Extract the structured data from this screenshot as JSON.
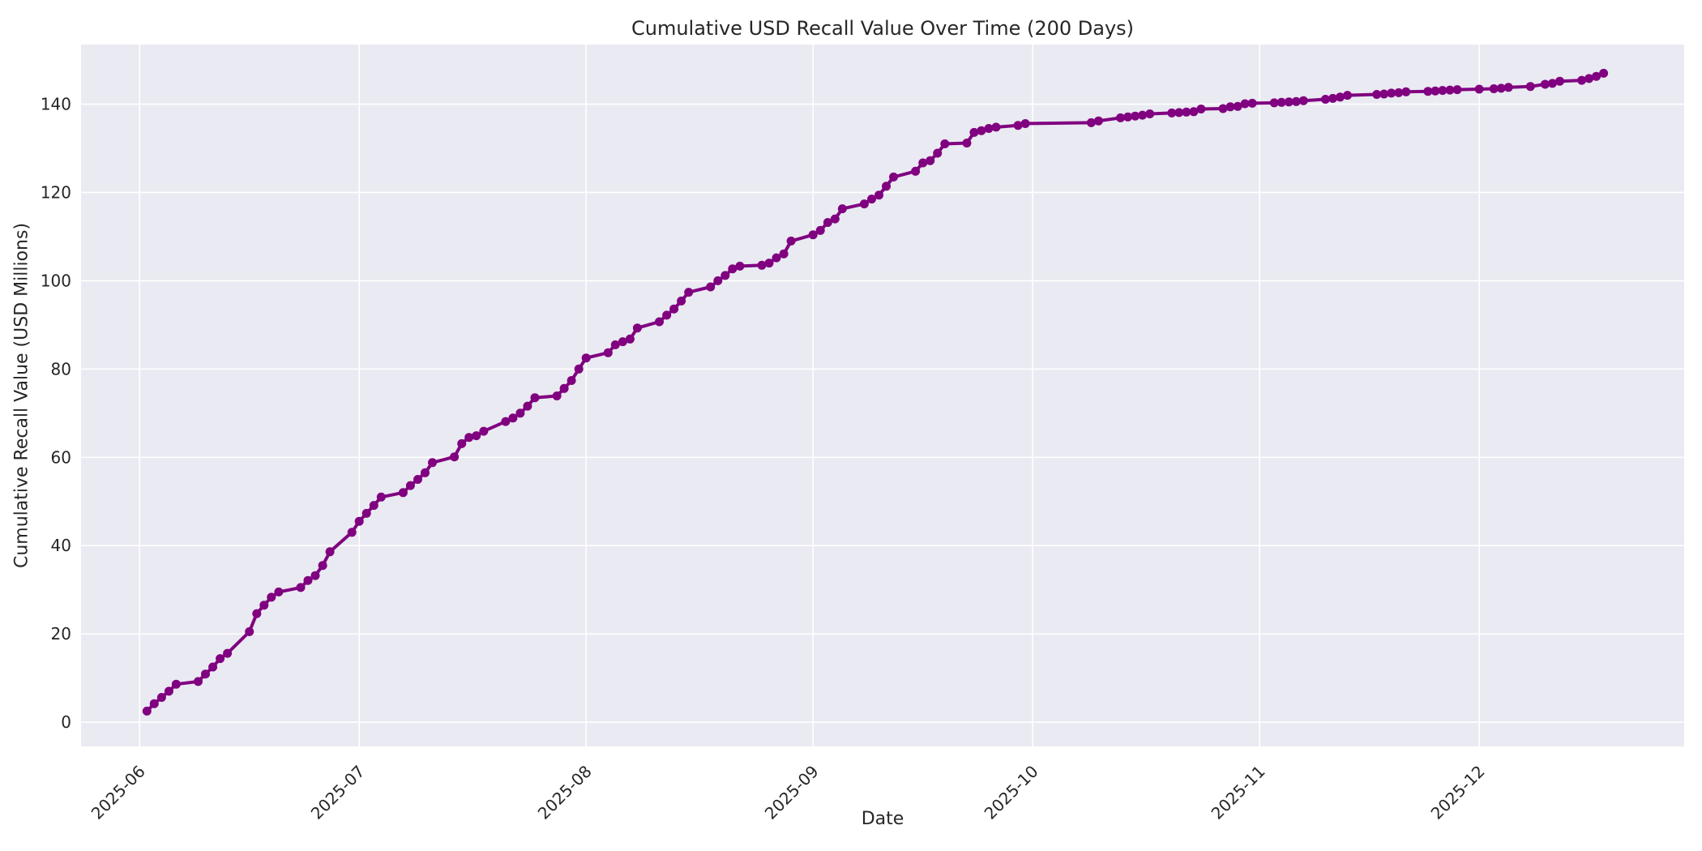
{
  "figure": {
    "title": "Cumulative USD Recall Value Over Time (200 Days)",
    "xlabel": "Date",
    "ylabel": "Cumulative Recall Value (USD Millions)"
  },
  "chart_data": {
    "type": "line",
    "title": "Cumulative USD Recall Value Over Time (200 Days)",
    "xlabel": "Date",
    "ylabel": "Cumulative Recall Value (USD Millions)",
    "grid": true,
    "legend": "none",
    "line_color": "#800080",
    "plot_bg": "#eaeaf2",
    "grid_color": "#ffffff",
    "text_color": "#262626",
    "marker": "circle",
    "marker_radius": 5.5,
    "line_width": 4,
    "x_start_date": "2025-06-02",
    "xlim_days": [
      -9,
      210
    ],
    "ylim": [
      -5.5,
      153.5
    ],
    "yticks": [
      0,
      20,
      40,
      60,
      80,
      100,
      120,
      140
    ],
    "xticks": [
      {
        "label": "2025-06",
        "date": "2025-06-01"
      },
      {
        "label": "2025-07",
        "date": "2025-07-01"
      },
      {
        "label": "2025-08",
        "date": "2025-08-01"
      },
      {
        "label": "2025-09",
        "date": "2025-09-01"
      },
      {
        "label": "2025-10",
        "date": "2025-10-01"
      },
      {
        "label": "2025-11",
        "date": "2025-11-01"
      },
      {
        "label": "2025-12",
        "date": "2025-12-01"
      }
    ],
    "series": [
      {
        "name": "Cumulative USD Recall Value",
        "x": [
          "2025-06-02",
          "2025-06-03",
          "2025-06-04",
          "2025-06-05",
          "2025-06-06",
          "2025-06-09",
          "2025-06-10",
          "2025-06-11",
          "2025-06-12",
          "2025-06-13",
          "2025-06-16",
          "2025-06-17",
          "2025-06-18",
          "2025-06-19",
          "2025-06-20",
          "2025-06-23",
          "2025-06-24",
          "2025-06-25",
          "2025-06-26",
          "2025-06-27",
          "2025-06-30",
          "2025-07-01",
          "2025-07-02",
          "2025-07-03",
          "2025-07-04",
          "2025-07-07",
          "2025-07-08",
          "2025-07-09",
          "2025-07-10",
          "2025-07-11",
          "2025-07-14",
          "2025-07-15",
          "2025-07-16",
          "2025-07-17",
          "2025-07-18",
          "2025-07-21",
          "2025-07-22",
          "2025-07-23",
          "2025-07-24",
          "2025-07-25",
          "2025-07-28",
          "2025-07-29",
          "2025-07-30",
          "2025-07-31",
          "2025-08-01",
          "2025-08-04",
          "2025-08-05",
          "2025-08-06",
          "2025-08-07",
          "2025-08-08",
          "2025-08-11",
          "2025-08-12",
          "2025-08-13",
          "2025-08-14",
          "2025-08-15",
          "2025-08-18",
          "2025-08-19",
          "2025-08-20",
          "2025-08-21",
          "2025-08-22",
          "2025-08-25",
          "2025-08-26",
          "2025-08-27",
          "2025-08-28",
          "2025-08-29",
          "2025-09-01",
          "2025-09-02",
          "2025-09-03",
          "2025-09-04",
          "2025-09-05",
          "2025-09-08",
          "2025-09-09",
          "2025-09-10",
          "2025-09-11",
          "2025-09-12",
          "2025-09-15",
          "2025-09-16",
          "2025-09-17",
          "2025-09-18",
          "2025-09-19",
          "2025-09-22",
          "2025-09-23",
          "2025-09-24",
          "2025-09-25",
          "2025-09-26",
          "2025-09-29",
          "2025-09-30",
          "2025-10-09",
          "2025-10-10",
          "2025-10-13",
          "2025-10-14",
          "2025-10-15",
          "2025-10-16",
          "2025-10-17",
          "2025-10-20",
          "2025-10-21",
          "2025-10-22",
          "2025-10-23",
          "2025-10-24",
          "2025-10-27",
          "2025-10-28",
          "2025-10-29",
          "2025-10-30",
          "2025-10-31",
          "2025-11-03",
          "2025-11-04",
          "2025-11-05",
          "2025-11-06",
          "2025-11-07",
          "2025-11-10",
          "2025-11-11",
          "2025-11-12",
          "2025-11-13",
          "2025-11-17",
          "2025-11-18",
          "2025-11-19",
          "2025-11-20",
          "2025-11-21",
          "2025-11-24",
          "2025-11-25",
          "2025-11-26",
          "2025-11-27",
          "2025-11-28",
          "2025-12-01",
          "2025-12-03",
          "2025-12-04",
          "2025-12-05",
          "2025-12-08",
          "2025-12-10",
          "2025-12-11",
          "2025-12-12",
          "2025-12-15",
          "2025-12-16",
          "2025-12-17",
          "2025-12-18"
        ],
        "values": [
          2.5,
          4.2,
          5.6,
          7.0,
          8.6,
          9.2,
          10.9,
          12.5,
          14.4,
          15.6,
          20.5,
          24.6,
          26.5,
          28.3,
          29.5,
          30.5,
          32.1,
          33.2,
          35.5,
          38.6,
          43.0,
          45.5,
          47.3,
          49.1,
          51.0,
          52.0,
          53.6,
          55.0,
          56.5,
          58.8,
          60.1,
          63.1,
          64.5,
          64.9,
          65.9,
          68.1,
          68.9,
          70.0,
          71.6,
          73.5,
          73.9,
          75.6,
          77.4,
          80.0,
          82.5,
          83.7,
          85.5,
          86.2,
          86.8,
          89.3,
          90.7,
          92.2,
          93.6,
          95.4,
          97.4,
          98.6,
          100.0,
          101.2,
          102.7,
          103.3,
          103.5,
          104.0,
          105.2,
          106.1,
          109.0,
          110.4,
          111.4,
          113.2,
          114.0,
          116.3,
          117.4,
          118.5,
          119.4,
          121.4,
          123.5,
          124.8,
          126.7,
          127.2,
          128.9,
          131.0,
          131.2,
          133.6,
          134.0,
          134.5,
          134.8,
          135.2,
          135.6,
          135.8,
          136.2,
          136.9,
          137.1,
          137.3,
          137.5,
          137.8,
          138.0,
          138.1,
          138.2,
          138.3,
          138.9,
          139.0,
          139.4,
          139.5,
          140.1,
          140.2,
          140.3,
          140.4,
          140.5,
          140.6,
          140.8,
          141.1,
          141.3,
          141.6,
          142.0,
          142.2,
          142.3,
          142.5,
          142.6,
          142.8,
          142.9,
          143.0,
          143.1,
          143.2,
          143.3,
          143.4,
          143.5,
          143.6,
          143.8,
          144.0,
          144.5,
          144.7,
          145.2,
          145.4,
          145.8,
          146.3,
          147.0
        ]
      }
    ]
  }
}
